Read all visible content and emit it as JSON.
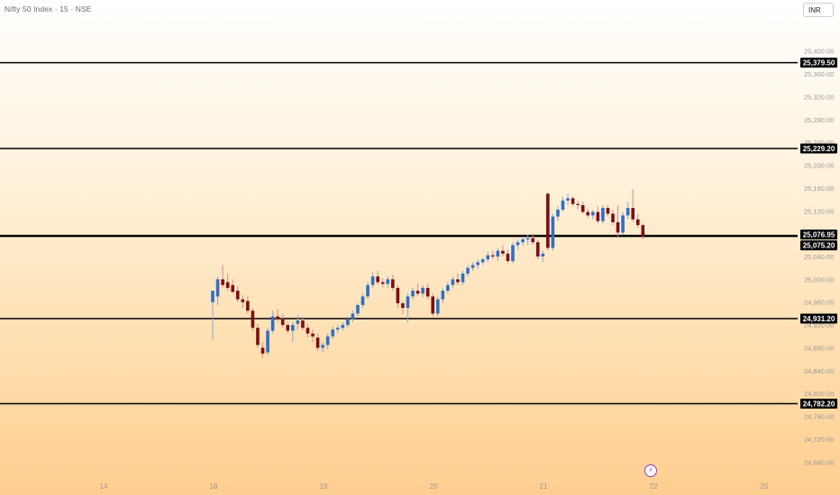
{
  "header": {
    "symbol_title": "Nifty 50 Index · 15 · NSE",
    "currency": "INR"
  },
  "icons": {
    "alert": "lightning-bolt-icon"
  },
  "colors": {
    "up": "#2f6fc6",
    "down": "#7a0f14",
    "level_line": "#000000",
    "axis_text": "#9a9a9a"
  },
  "chart_data": {
    "type": "candlestick",
    "interval": "15",
    "ylim": [
      24660,
      25420
    ],
    "y_ticks": [
      "25,400.00",
      "25,360.00",
      "25,320.00",
      "25,280.00",
      "25,240.00",
      "25,200.00",
      "25,160.00",
      "25,120.00",
      "25,080.00",
      "25,040.00",
      "25,000.00",
      "24,960.00",
      "24,920.00",
      "24,880.00",
      "24,840.00",
      "24,800.00",
      "24,760.00",
      "24,720.00",
      "24,680.00"
    ],
    "x_ticks": [
      "14",
      "18",
      "19",
      "20",
      "21",
      "22",
      "25"
    ],
    "level_lines": [
      {
        "label": "25,379.50",
        "value": 25379.5
      },
      {
        "label": "25,229.20",
        "value": 25229.2
      },
      {
        "label": "25,076.95",
        "value": 25076.95
      },
      {
        "label": "25,075.20",
        "value": 25075.2
      },
      {
        "label": "24,931.20",
        "value": 24931.2
      },
      {
        "label": "24,782.20",
        "value": 24782.2
      }
    ],
    "candles": [
      {
        "o": 24960,
        "h": 24975,
        "l": 24895,
        "c": 24980
      },
      {
        "o": 24970,
        "h": 25005,
        "l": 24955,
        "c": 25000
      },
      {
        "o": 25000,
        "h": 25025,
        "l": 24985,
        "c": 24990
      },
      {
        "o": 24995,
        "h": 25010,
        "l": 24980,
        "c": 24985
      },
      {
        "o": 24990,
        "h": 25000,
        "l": 24975,
        "c": 24978
      },
      {
        "o": 24980,
        "h": 24988,
        "l": 24960,
        "c": 24965
      },
      {
        "o": 24965,
        "h": 24972,
        "l": 24950,
        "c": 24960
      },
      {
        "o": 24962,
        "h": 24970,
        "l": 24940,
        "c": 24945
      },
      {
        "o": 24945,
        "h": 24950,
        "l": 24910,
        "c": 24915
      },
      {
        "o": 24915,
        "h": 24922,
        "l": 24880,
        "c": 24885
      },
      {
        "o": 24880,
        "h": 24890,
        "l": 24862,
        "c": 24870
      },
      {
        "o": 24872,
        "h": 24915,
        "l": 24868,
        "c": 24910
      },
      {
        "o": 24910,
        "h": 24945,
        "l": 24905,
        "c": 24935
      },
      {
        "o": 24935,
        "h": 24948,
        "l": 24925,
        "c": 24930
      },
      {
        "o": 24930,
        "h": 24940,
        "l": 24915,
        "c": 24920
      },
      {
        "o": 24920,
        "h": 24925,
        "l": 24905,
        "c": 24910
      },
      {
        "o": 24910,
        "h": 24925,
        "l": 24890,
        "c": 24920
      },
      {
        "o": 24922,
        "h": 24938,
        "l": 24912,
        "c": 24928
      },
      {
        "o": 24928,
        "h": 24935,
        "l": 24910,
        "c": 24915
      },
      {
        "o": 24915,
        "h": 24922,
        "l": 24898,
        "c": 24905
      },
      {
        "o": 24905,
        "h": 24912,
        "l": 24890,
        "c": 24900
      },
      {
        "o": 24898,
        "h": 24905,
        "l": 24875,
        "c": 24880
      },
      {
        "o": 24880,
        "h": 24890,
        "l": 24872,
        "c": 24885
      },
      {
        "o": 24885,
        "h": 24905,
        "l": 24878,
        "c": 24900
      },
      {
        "o": 24900,
        "h": 24918,
        "l": 24895,
        "c": 24912
      },
      {
        "o": 24912,
        "h": 24920,
        "l": 24905,
        "c": 24915
      },
      {
        "o": 24915,
        "h": 24925,
        "l": 24910,
        "c": 24920
      },
      {
        "o": 24920,
        "h": 24935,
        "l": 24915,
        "c": 24930
      },
      {
        "o": 24930,
        "h": 24945,
        "l": 24925,
        "c": 24940
      },
      {
        "o": 24940,
        "h": 24958,
        "l": 24935,
        "c": 24955
      },
      {
        "o": 24955,
        "h": 24975,
        "l": 24950,
        "c": 24970
      },
      {
        "o": 24970,
        "h": 24995,
        "l": 24965,
        "c": 24990
      },
      {
        "o": 24990,
        "h": 25012,
        "l": 24985,
        "c": 25005
      },
      {
        "o": 25005,
        "h": 25015,
        "l": 24990,
        "c": 24995
      },
      {
        "o": 24995,
        "h": 25002,
        "l": 24985,
        "c": 24992
      },
      {
        "o": 24992,
        "h": 25005,
        "l": 24985,
        "c": 25000
      },
      {
        "o": 25000,
        "h": 25008,
        "l": 24980,
        "c": 24985
      },
      {
        "o": 24985,
        "h": 24990,
        "l": 24950,
        "c": 24958
      },
      {
        "o": 24958,
        "h": 24962,
        "l": 24940,
        "c": 24950
      },
      {
        "o": 24950,
        "h": 24975,
        "l": 24925,
        "c": 24970
      },
      {
        "o": 24970,
        "h": 24985,
        "l": 24965,
        "c": 24980
      },
      {
        "o": 24980,
        "h": 24992,
        "l": 24970,
        "c": 24975
      },
      {
        "o": 24975,
        "h": 24990,
        "l": 24968,
        "c": 24985
      },
      {
        "o": 24985,
        "h": 24992,
        "l": 24965,
        "c": 24970
      },
      {
        "o": 24970,
        "h": 24975,
        "l": 24935,
        "c": 24940
      },
      {
        "o": 24940,
        "h": 24970,
        "l": 24935,
        "c": 24965
      },
      {
        "o": 24965,
        "h": 24985,
        "l": 24958,
        "c": 24980
      },
      {
        "o": 24980,
        "h": 24995,
        "l": 24975,
        "c": 24990
      },
      {
        "o": 24990,
        "h": 25005,
        "l": 24985,
        "c": 25000
      },
      {
        "o": 25000,
        "h": 25010,
        "l": 24990,
        "c": 24995
      },
      {
        "o": 24995,
        "h": 25015,
        "l": 24990,
        "c": 25010
      },
      {
        "o": 25010,
        "h": 25025,
        "l": 25005,
        "c": 25020
      },
      {
        "o": 25020,
        "h": 25030,
        "l": 25015,
        "c": 25025
      },
      {
        "o": 25025,
        "h": 25035,
        "l": 25018,
        "c": 25030
      },
      {
        "o": 25030,
        "h": 25038,
        "l": 25025,
        "c": 25035
      },
      {
        "o": 25035,
        "h": 25048,
        "l": 25030,
        "c": 25042
      },
      {
        "o": 25042,
        "h": 25050,
        "l": 25035,
        "c": 25040
      },
      {
        "o": 25040,
        "h": 25055,
        "l": 25032,
        "c": 25050
      },
      {
        "o": 25050,
        "h": 25060,
        "l": 25040,
        "c": 25045
      },
      {
        "o": 25045,
        "h": 25052,
        "l": 25028,
        "c": 25032
      },
      {
        "o": 25032,
        "h": 25065,
        "l": 25028,
        "c": 25060
      },
      {
        "o": 25060,
        "h": 25070,
        "l": 25052,
        "c": 25065
      },
      {
        "o": 25065,
        "h": 25075,
        "l": 25058,
        "c": 25070
      },
      {
        "o": 25070,
        "h": 25078,
        "l": 25060,
        "c": 25072
      },
      {
        "o": 25072,
        "h": 25080,
        "l": 25060,
        "c": 25065
      },
      {
        "o": 25065,
        "h": 25070,
        "l": 25035,
        "c": 25040
      },
      {
        "o": 25040,
        "h": 25050,
        "l": 25030,
        "c": 25045
      },
      {
        "o": 25150,
        "h": 25152,
        "l": 25050,
        "c": 25055
      },
      {
        "o": 25055,
        "h": 25115,
        "l": 25050,
        "c": 25110
      },
      {
        "o": 25110,
        "h": 25128,
        "l": 25102,
        "c": 25122
      },
      {
        "o": 25122,
        "h": 25145,
        "l": 25118,
        "c": 25138
      },
      {
        "o": 25138,
        "h": 25150,
        "l": 25130,
        "c": 25142
      },
      {
        "o": 25142,
        "h": 25146,
        "l": 25128,
        "c": 25132
      },
      {
        "o": 25132,
        "h": 25138,
        "l": 25122,
        "c": 25130
      },
      {
        "o": 25130,
        "h": 25136,
        "l": 25115,
        "c": 25118
      },
      {
        "o": 25118,
        "h": 25124,
        "l": 25108,
        "c": 25112
      },
      {
        "o": 25112,
        "h": 25122,
        "l": 25105,
        "c": 25118
      },
      {
        "o": 25118,
        "h": 25128,
        "l": 25098,
        "c": 25102
      },
      {
        "o": 25102,
        "h": 25130,
        "l": 25098,
        "c": 25125
      },
      {
        "o": 25125,
        "h": 25130,
        "l": 25110,
        "c": 25115
      },
      {
        "o": 25115,
        "h": 25122,
        "l": 25095,
        "c": 25100
      },
      {
        "o": 25100,
        "h": 25130,
        "l": 25075,
        "c": 25082
      },
      {
        "o": 25082,
        "h": 25118,
        "l": 25078,
        "c": 25112
      },
      {
        "o": 25112,
        "h": 25135,
        "l": 25105,
        "c": 25125
      },
      {
        "o": 25125,
        "h": 25158,
        "l": 25100,
        "c": 25105
      },
      {
        "o": 25105,
        "h": 25115,
        "l": 25090,
        "c": 25095
      },
      {
        "o": 25095,
        "h": 25098,
        "l": 25070,
        "c": 25075
      }
    ]
  }
}
